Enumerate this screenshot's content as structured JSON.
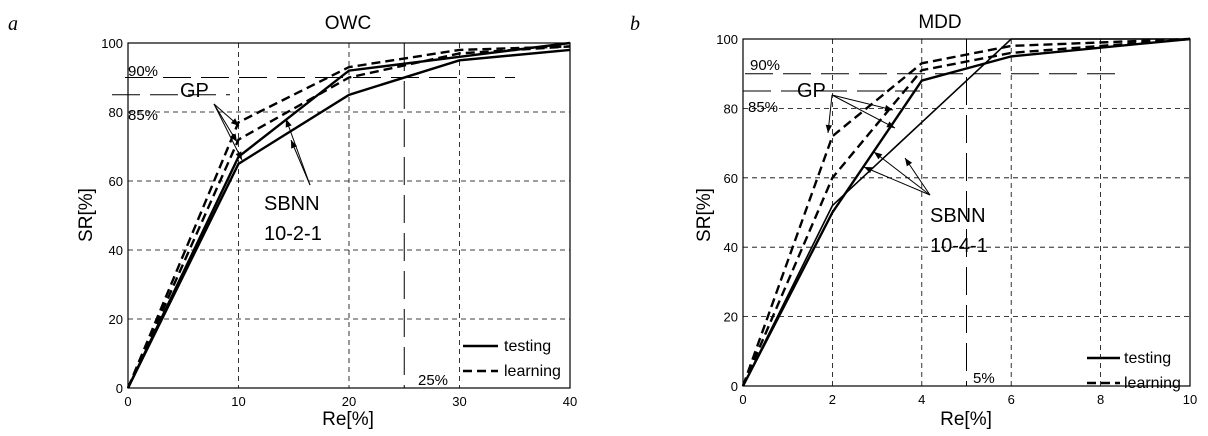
{
  "chart_data": [
    {
      "panel_letter": "a",
      "type": "line",
      "title": "OWC",
      "xlabel": "Re[%]",
      "ylabel": "SR[%]",
      "xlim": [
        0,
        40
      ],
      "ylim": [
        0,
        100
      ],
      "xticks": [
        0,
        10,
        20,
        30,
        40
      ],
      "yticks": [
        0,
        20,
        40,
        60,
        80,
        100
      ],
      "grid": true,
      "legend_position": "bottom-right",
      "legend": [
        {
          "label": "testing",
          "style": "solid"
        },
        {
          "label": "learning",
          "style": "dashed"
        }
      ],
      "reference_lines": {
        "y90_label": "90%",
        "y85_label": "85%",
        "x_label": "25%",
        "y90": 90,
        "y85": 85,
        "x": 25
      },
      "annotations": {
        "gp_label": "GP",
        "sbnn_label": "SBNN",
        "sbnn_arch": "10-2-1"
      },
      "series": [
        {
          "style": "solid",
          "points": [
            [
              0,
              0
            ],
            [
              10,
              65
            ],
            [
              20,
              85
            ],
            [
              30,
              95
            ],
            [
              40,
              98
            ]
          ]
        },
        {
          "style": "solid",
          "points": [
            [
              0,
              0
            ],
            [
              10,
              67
            ],
            [
              20,
              92
            ],
            [
              30,
              96
            ],
            [
              40,
              100
            ]
          ]
        },
        {
          "style": "dashed",
          "points": [
            [
              0,
              0
            ],
            [
              10,
              72
            ],
            [
              20,
              90
            ],
            [
              30,
              97
            ],
            [
              40,
              99
            ]
          ]
        },
        {
          "style": "dashed",
          "points": [
            [
              0,
              0
            ],
            [
              10,
              77
            ],
            [
              20,
              93
            ],
            [
              30,
              98
            ],
            [
              40,
              99
            ]
          ]
        }
      ]
    },
    {
      "panel_letter": "b",
      "type": "line",
      "title": "MDD",
      "xlabel": "Re[%]",
      "ylabel": "SR[%]",
      "xlim": [
        0,
        10
      ],
      "ylim": [
        0,
        100
      ],
      "xticks": [
        0,
        2,
        4,
        6,
        8,
        10
      ],
      "yticks": [
        0,
        20,
        40,
        60,
        80,
        100
      ],
      "grid": true,
      "legend_position": "bottom-right",
      "legend": [
        {
          "label": "testing",
          "style": "solid"
        },
        {
          "label": "learning",
          "style": "dashed"
        }
      ],
      "reference_lines": {
        "y90_label": "90%",
        "y85_label": "85%",
        "x_label": "5%",
        "y90": 90,
        "y85": 85,
        "x": 5
      },
      "annotations": {
        "gp_label": "GP",
        "sbnn_label": "SBNN",
        "sbnn_arch": "10-4-1"
      },
      "series": [
        {
          "style": "solid",
          "points": [
            [
              0,
              0
            ],
            [
              2,
              50
            ],
            [
              4,
              88
            ],
            [
              6,
              95
            ],
            [
              10,
              100
            ]
          ]
        },
        {
          "style": "solid",
          "points": [
            [
              0,
              0
            ],
            [
              2,
              52
            ],
            [
              4,
              76
            ],
            [
              6,
              100
            ],
            [
              10,
              100
            ]
          ]
        },
        {
          "style": "dashed",
          "points": [
            [
              0,
              0
            ],
            [
              2,
              60
            ],
            [
              4,
              91
            ],
            [
              6,
              96
            ],
            [
              10,
              100
            ]
          ]
        },
        {
          "style": "dashed",
          "points": [
            [
              0,
              0
            ],
            [
              2,
              72
            ],
            [
              4,
              93
            ],
            [
              6,
              98
            ],
            [
              10,
              100
            ]
          ]
        }
      ]
    }
  ]
}
